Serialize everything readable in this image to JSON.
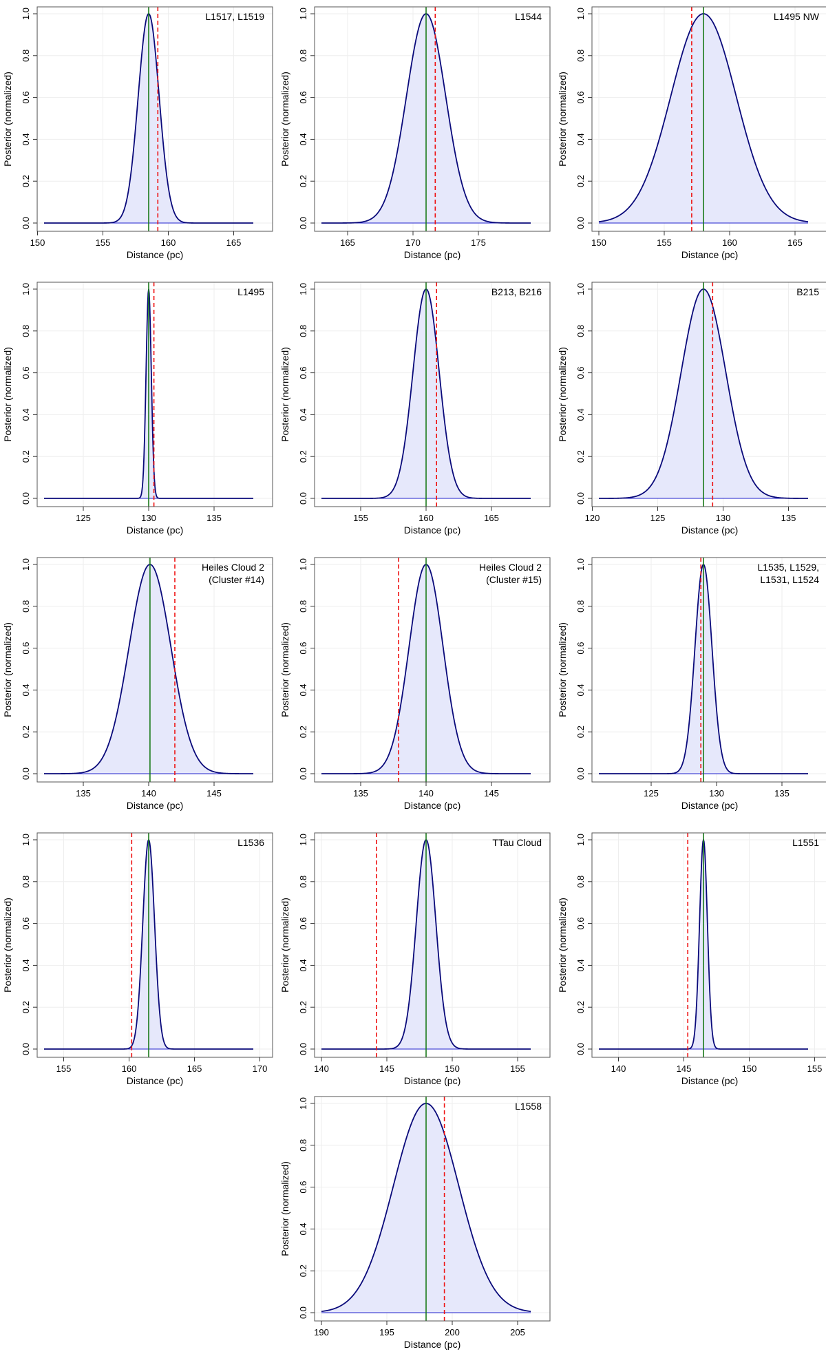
{
  "colors": {
    "curve": "#0a0a7a",
    "fill": "#e6e8fb",
    "baseline": "#2222cc",
    "median": "#1a7a1a",
    "reference": "#ee1111",
    "grid": "#eeeeee",
    "frame": "#555555"
  },
  "chart_data": [
    {
      "type": "area",
      "title": [
        "L1517, L1519"
      ],
      "xlabel": "Distance (pc)",
      "ylabel": "Posterior (normalized)",
      "xlim": [
        150.5,
        166.5
      ],
      "ylim": [
        0,
        1
      ],
      "xticks": [
        150,
        155,
        160,
        165
      ],
      "yticks": [
        0.0,
        0.2,
        0.4,
        0.6,
        0.8,
        1.0
      ],
      "mean": 158.5,
      "sd": 0.8,
      "median_line": 158.5,
      "reference_line": 159.2
    },
    {
      "type": "area",
      "title": [
        "L1544"
      ],
      "xlabel": "Distance (pc)",
      "ylabel": "Posterior (normalized)",
      "xlim": [
        163,
        179
      ],
      "ylim": [
        0,
        1
      ],
      "xticks": [
        165,
        170,
        175
      ],
      "yticks": [
        0.0,
        0.2,
        0.4,
        0.6,
        0.8,
        1.0
      ],
      "mean": 171.0,
      "sd": 1.5,
      "median_line": 171.0,
      "reference_line": 171.7
    },
    {
      "type": "area",
      "title": [
        "L1495 NW"
      ],
      "xlabel": "Distance (pc)",
      "ylabel": "Posterior (normalized)",
      "xlim": [
        150,
        166
      ],
      "ylim": [
        0,
        1
      ],
      "xticks": [
        150,
        155,
        160,
        165
      ],
      "yticks": [
        0.0,
        0.2,
        0.4,
        0.6,
        0.8,
        1.0
      ],
      "mean": 158.0,
      "sd": 2.5,
      "median_line": 158.0,
      "reference_line": 157.1
    },
    {
      "type": "area",
      "title": [
        "L1495"
      ],
      "xlabel": "Distance (pc)",
      "ylabel": "Posterior (normalized)",
      "xlim": [
        122,
        138
      ],
      "ylim": [
        0,
        1
      ],
      "xticks": [
        125,
        130,
        135
      ],
      "yticks": [
        0.0,
        0.2,
        0.4,
        0.6,
        0.8,
        1.0
      ],
      "mean": 130.0,
      "sd": 0.2,
      "median_line": 130.0,
      "reference_line": 130.4
    },
    {
      "type": "area",
      "title": [
        "B213, B216"
      ],
      "xlabel": "Distance (pc)",
      "ylabel": "Posterior (normalized)",
      "xlim": [
        152,
        168
      ],
      "ylim": [
        0,
        1
      ],
      "xticks": [
        155,
        160,
        165
      ],
      "yticks": [
        0.0,
        0.2,
        0.4,
        0.6,
        0.8,
        1.0
      ],
      "mean": 160.0,
      "sd": 1.0,
      "median_line": 160.0,
      "reference_line": 160.8
    },
    {
      "type": "area",
      "title": [
        "B215"
      ],
      "xlabel": "Distance (pc)",
      "ylabel": "Posterior (normalized)",
      "xlim": [
        120.5,
        136.5
      ],
      "ylim": [
        0,
        1
      ],
      "xticks": [
        120,
        125,
        130,
        135
      ],
      "yticks": [
        0.0,
        0.2,
        0.4,
        0.6,
        0.8,
        1.0
      ],
      "mean": 128.5,
      "sd": 1.7,
      "median_line": 128.5,
      "reference_line": 129.2
    },
    {
      "type": "area",
      "title": [
        "Heiles Cloud 2",
        "(Cluster #14)"
      ],
      "xlabel": "Distance (pc)",
      "ylabel": "Posterior (normalized)",
      "xlim": [
        132,
        148
      ],
      "ylim": [
        0,
        1
      ],
      "xticks": [
        135,
        140,
        145
      ],
      "yticks": [
        0.0,
        0.2,
        0.4,
        0.6,
        0.8,
        1.0
      ],
      "mean": 140.1,
      "sd": 1.6,
      "median_line": 140.1,
      "reference_line": 142.0
    },
    {
      "type": "area",
      "title": [
        "Heiles Cloud 2",
        "(Cluster #15)"
      ],
      "xlabel": "Distance (pc)",
      "ylabel": "Posterior (normalized)",
      "xlim": [
        132,
        148
      ],
      "ylim": [
        0,
        1
      ],
      "xticks": [
        135,
        140,
        145
      ],
      "yticks": [
        0.0,
        0.2,
        0.4,
        0.6,
        0.8,
        1.0
      ],
      "mean": 140.0,
      "sd": 1.3,
      "median_line": 140.0,
      "reference_line": 137.9
    },
    {
      "type": "area",
      "title": [
        "L1535, L1529,",
        "L1531, L1524"
      ],
      "xlabel": "Distance (pc)",
      "ylabel": "Posterior (normalized)",
      "xlim": [
        121,
        137
      ],
      "ylim": [
        0,
        1
      ],
      "xticks": [
        125,
        130,
        135
      ],
      "yticks": [
        0.0,
        0.2,
        0.4,
        0.6,
        0.8,
        1.0
      ],
      "mean": 129.0,
      "sd": 0.65,
      "median_line": 129.0,
      "reference_line": 128.8
    },
    {
      "type": "area",
      "title": [
        "L1536"
      ],
      "xlabel": "Distance (pc)",
      "ylabel": "Posterior (normalized)",
      "xlim": [
        153.5,
        169.5
      ],
      "ylim": [
        0,
        1
      ],
      "xticks": [
        155,
        160,
        165,
        170
      ],
      "yticks": [
        0.0,
        0.2,
        0.4,
        0.6,
        0.8,
        1.0
      ],
      "mean": 161.5,
      "sd": 0.45,
      "median_line": 161.5,
      "reference_line": 160.2
    },
    {
      "type": "area",
      "title": [
        "TTau Cloud"
      ],
      "xlabel": "Distance (pc)",
      "ylabel": "Posterior (normalized)",
      "xlim": [
        140,
        156
      ],
      "ylim": [
        0,
        1
      ],
      "xticks": [
        140,
        145,
        150,
        155
      ],
      "yticks": [
        0.0,
        0.2,
        0.4,
        0.6,
        0.8,
        1.0
      ],
      "mean": 148.0,
      "sd": 0.75,
      "median_line": 148.0,
      "reference_line": 144.2
    },
    {
      "type": "area",
      "title": [
        "L1551"
      ],
      "xlabel": "Distance (pc)",
      "ylabel": "Posterior (normalized)",
      "xlim": [
        138.5,
        154.5
      ],
      "ylim": [
        0,
        1
      ],
      "xticks": [
        140,
        145,
        150,
        155
      ],
      "yticks": [
        0.0,
        0.2,
        0.4,
        0.6,
        0.8,
        1.0
      ],
      "mean": 146.5,
      "sd": 0.3,
      "median_line": 146.5,
      "reference_line": 145.3
    },
    {
      "type": "area",
      "title": [
        "L1558"
      ],
      "xlabel": "Distance (pc)",
      "ylabel": "Posterior (normalized)",
      "xlim": [
        190,
        206
      ],
      "ylim": [
        0,
        1
      ],
      "xticks": [
        190,
        195,
        200,
        205
      ],
      "yticks": [
        0.0,
        0.2,
        0.4,
        0.6,
        0.8,
        1.0
      ],
      "mean": 198.0,
      "sd": 2.5,
      "median_line": 198.0,
      "reference_line": 199.4
    }
  ]
}
